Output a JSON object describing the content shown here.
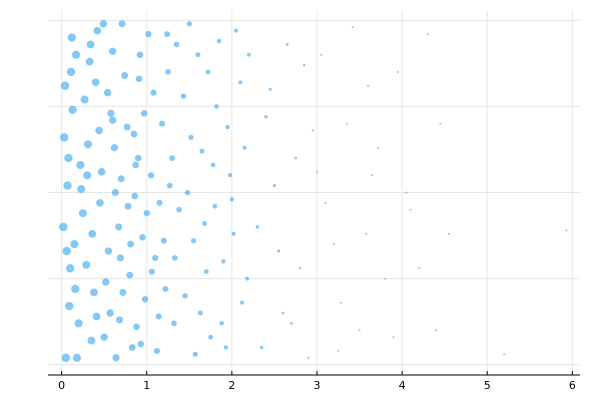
{
  "chart_data": {
    "type": "scatter",
    "color": "#1f9bef",
    "grid": true,
    "y_tick_labels": false,
    "xlim": [
      -0.16,
      6.09
    ],
    "xticks": [
      0,
      1,
      2,
      3,
      4,
      5,
      6
    ],
    "ylim": [
      -0.03,
      1.03
    ],
    "yticks": [
      0,
      0.25,
      0.5,
      0.75,
      1
    ],
    "x": [
      0.05,
      0.12,
      0.33,
      0.71,
      0.9,
      1.1,
      0.45,
      0.2,
      0.58,
      0.83,
      1.25,
      0.03,
      0.67,
      0.38,
      1.05,
      0.15,
      0.92,
      0.5,
      0.27,
      1.32,
      0.8,
      0.07,
      0.62,
      1.18,
      0.42,
      0.98,
      0.22,
      0.74,
      1.38,
      0.1,
      0.55,
      0.86,
      1.02,
      0.31,
      0.68,
      1.22,
      0.04,
      0.47,
      0.95,
      0.18,
      0.77,
      1.12,
      0.36,
      0.6,
      1.3,
      0.13,
      0.88,
      0.52,
      1.08,
      0.25,
      0.7,
      1.15,
      0.09,
      0.4,
      0.97,
      0.64,
      1.35,
      0.29,
      0.81,
      0.02,
      0.57,
      1.2,
      0.44,
      0.91,
      0.17,
      0.72,
      1.27,
      0.35,
      1.0,
      0.63,
      0.08,
      0.49,
      0.85,
      1.14,
      0.23,
      0.78,
      0.34,
      1.06,
      0.54,
      0.16,
      0.93,
      1.33,
      0.41,
      0.69,
      0.11,
      0.6,
      1.24,
      0.3,
      0.87,
      0.06,
      1.45,
      1.52,
      1.6,
      1.68,
      1.75,
      1.82,
      1.9,
      1.98,
      2.05,
      2.12,
      1.48,
      1.57,
      1.65,
      1.72,
      1.8,
      1.88,
      1.95,
      2.02,
      2.1,
      2.18,
      1.43,
      1.55,
      1.63,
      1.78,
      1.85,
      1.93,
      2.0,
      2.15,
      1.5,
      1.7,
      2.3,
      2.45,
      2.6,
      2.75,
      2.9,
      3.05,
      3.2,
      3.35,
      3.5,
      3.65,
      3.8,
      3.95,
      4.1,
      4.3,
      4.45,
      2.35,
      2.5,
      2.65,
      2.8,
      2.95,
      3.1,
      3.28,
      3.42,
      3.58,
      3.72,
      3.9,
      2.4,
      2.55,
      2.7,
      2.85,
      3.0,
      3.25,
      3.6,
      4.05,
      4.2,
      4.55,
      5.2,
      5.93,
      4.4,
      2.2
    ],
    "values": [
      0.02,
      0.95,
      0.88,
      0.99,
      0.6,
      0.31,
      0.47,
      0.12,
      0.73,
      0.05,
      0.85,
      0.66,
      0.4,
      0.21,
      0.55,
      0.35,
      0.9,
      0.08,
      0.77,
      0.12,
      0.26,
      0.52,
      0.63,
      0.7,
      0.97,
      0.19,
      0.58,
      0.84,
      0.45,
      0.28,
      0.33,
      0.49,
      0.96,
      0.64,
      0.13,
      0.22,
      0.81,
      0.56,
      0.37,
      0.02,
      0.69,
      0.04,
      0.38,
      0.91,
      0.6,
      0.74,
      0.11,
      0.24,
      0.79,
      0.44,
      0.54,
      0.47,
      0.17,
      0.82,
      0.73,
      0.02,
      0.93,
      0.29,
      0.35,
      0.4,
      0.15,
      0.36,
      0.68,
      0.83,
      0.9,
      0.21,
      0.52,
      0.07,
      0.44,
      0.5,
      0.6,
      0.99,
      0.67,
      0.14,
      0.51,
      0.46,
      0.93,
      0.27,
      0.79,
      0.22,
      0.06,
      0.31,
      0.14,
      0.31,
      0.85,
      0.71,
      0.96,
      0.55,
      0.58,
      0.33,
      0.2,
      0.66,
      0.9,
      0.41,
      0.08,
      0.75,
      0.3,
      0.55,
      0.97,
      0.18,
      0.5,
      0.03,
      0.62,
      0.85,
      0.46,
      0.12,
      0.69,
      0.38,
      0.82,
      0.25,
      0.78,
      0.36,
      0.15,
      0.58,
      0.94,
      0.05,
      0.48,
      0.63,
      0.99,
      0.27,
      0.4,
      0.8,
      0.15,
      0.6,
      0.02,
      0.9,
      0.35,
      0.7,
      0.1,
      0.55,
      0.25,
      0.85,
      0.45,
      0.96,
      0.7,
      0.05,
      0.52,
      0.93,
      0.28,
      0.68,
      0.47,
      0.18,
      0.98,
      0.38,
      0.63,
      0.08,
      0.72,
      0.33,
      0.12,
      0.87,
      0.56,
      0.04,
      0.81,
      0.5,
      0.28,
      0.38,
      0.03,
      0.39,
      0.1,
      0.9
    ]
  }
}
